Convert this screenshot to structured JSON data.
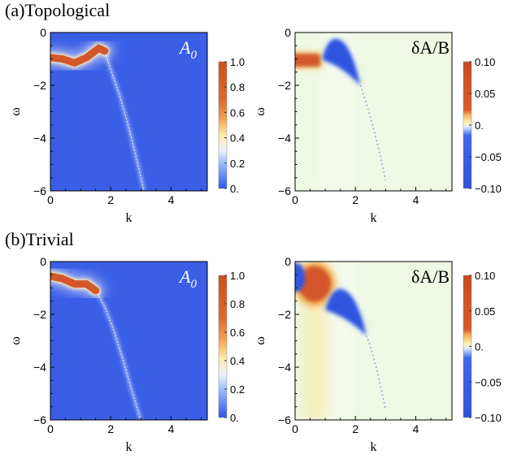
{
  "section_a": "(a)Topological",
  "section_b": "(b)Trivial",
  "colors": {
    "panel_blue": "#3a5ee6",
    "band_orange": "#d4572a",
    "delta_background": "#eef8e2",
    "delta_negative": "#2f55e0"
  },
  "chart_data": [
    {
      "type": "heatmap",
      "panel": "(a) A0",
      "label": "A",
      "label_sub": "0",
      "xlabel": "k",
      "ylabel": "ω",
      "xlim": [
        0,
        5.2
      ],
      "ylim": [
        -6,
        0
      ],
      "xticks": [
        "0",
        "2",
        "4"
      ],
      "yticks": [
        "0",
        "−2",
        "−4",
        "−6"
      ],
      "colorbar": {
        "ticks": [
          "1.0",
          "0.8",
          "0.6",
          "0.4",
          "0.2",
          "0."
        ],
        "range": [
          0,
          1
        ]
      },
      "features": {
        "band": {
          "k": [
            0,
            0.4,
            0.8,
            1.2,
            1.6,
            1.8,
            2.0,
            2.3,
            2.6,
            2.9,
            3.1
          ],
          "omega": [
            -0.95,
            -1.0,
            -1.15,
            -0.95,
            -0.6,
            -0.7,
            -1.4,
            -2.4,
            -3.6,
            -5.0,
            -6.0
          ],
          "strong_until_k": 1.7
        }
      }
    },
    {
      "type": "heatmap",
      "panel": "(a) dA/B",
      "label": "δA/B",
      "xlabel": "k",
      "ylabel": "ω",
      "xlim": [
        0,
        5.2
      ],
      "ylim": [
        -6,
        0
      ],
      "xticks": [
        "0",
        "2",
        "4"
      ],
      "yticks": [
        "0",
        "−2",
        "−4",
        "−6"
      ],
      "colorbar": {
        "ticks": [
          "0.10",
          "0.05",
          "0.",
          "−0.05",
          "−0.10"
        ],
        "range": [
          -0.1,
          0.1
        ]
      },
      "features": {
        "positive_band": {
          "k": [
            0,
            0.9
          ],
          "omega_center": -1.05
        },
        "negative_lobe": {
          "k": [
            0.9,
            2.0
          ],
          "omega_peak": -0.4
        }
      }
    },
    {
      "type": "heatmap",
      "panel": "(b) A0",
      "label": "A",
      "label_sub": "0",
      "xlabel": "k",
      "ylabel": "ω",
      "xlim": [
        0,
        5.2
      ],
      "ylim": [
        -6,
        0
      ],
      "xticks": [
        "0",
        "2",
        "4"
      ],
      "yticks": [
        "0",
        "−2",
        "−4",
        "−6"
      ],
      "colorbar": {
        "ticks": [
          "1.0",
          "0.8",
          "0.6",
          "0.4",
          "0.2",
          "0."
        ],
        "range": [
          0,
          1
        ]
      },
      "features": {
        "band": {
          "k": [
            0,
            0.4,
            0.8,
            1.2,
            1.5,
            1.8,
            2.1,
            2.4,
            2.7,
            3.0
          ],
          "omega": [
            -0.55,
            -0.65,
            -0.85,
            -0.85,
            -1.1,
            -1.7,
            -2.6,
            -3.7,
            -4.9,
            -6.0
          ],
          "strong_until_k": 1.4
        }
      }
    },
    {
      "type": "heatmap",
      "panel": "(b) dA/B",
      "label": "δA/B",
      "xlabel": "k",
      "ylabel": "ω",
      "xlim": [
        0,
        5.2
      ],
      "ylim": [
        -6,
        0
      ],
      "xticks": [
        "0",
        "2",
        "4"
      ],
      "yticks": [
        "0",
        "−2",
        "−4",
        "−6"
      ],
      "colorbar": {
        "ticks": [
          "0.10",
          "0.05",
          "0.",
          "−0.05",
          "−0.10"
        ],
        "range": [
          -0.1,
          0.1
        ]
      },
      "features": {
        "negative_edge": {
          "k": [
            0,
            0.2
          ],
          "omega_center": -0.6
        },
        "positive_blob": {
          "k": [
            0.3,
            1.0
          ],
          "omega_center": -0.85
        },
        "negative_lobe": {
          "k": [
            1.0,
            2.2
          ],
          "omega_peak": -1.2
        }
      }
    }
  ]
}
